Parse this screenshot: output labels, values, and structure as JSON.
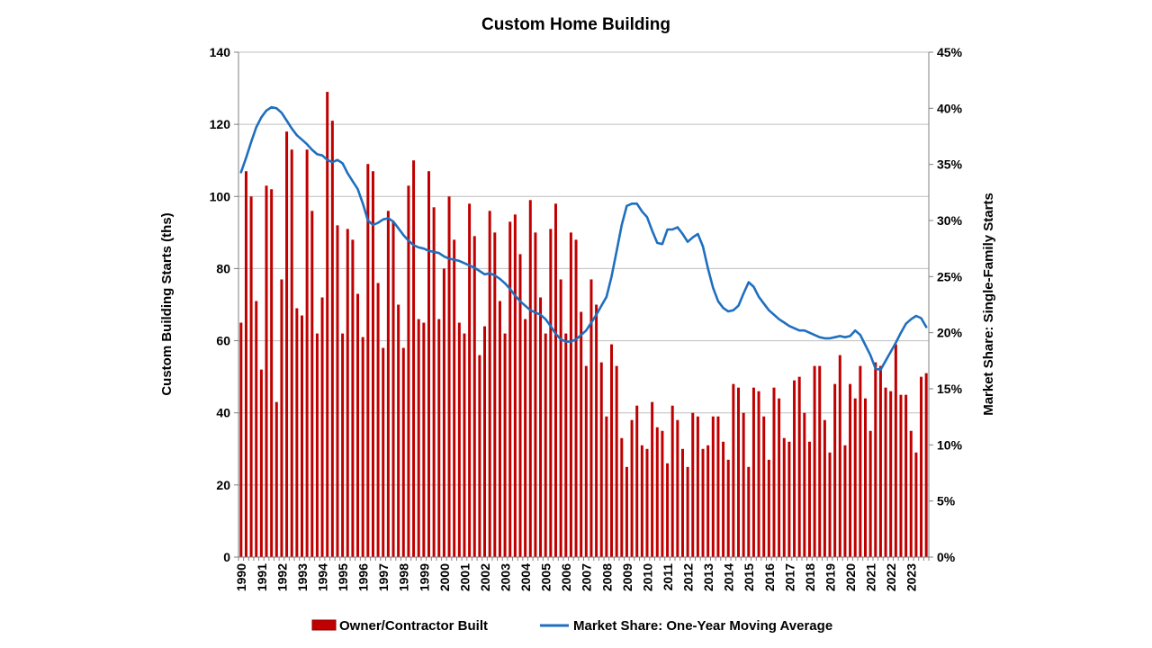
{
  "page": {
    "background": "#FFFFFF"
  },
  "chart_data": {
    "type": "combo-bar-line",
    "title": "Custom Home Building",
    "frequency": "quarterly",
    "years": [
      1990,
      1991,
      1992,
      1993,
      1994,
      1995,
      1996,
      1997,
      1998,
      1999,
      2000,
      2001,
      2002,
      2003,
      2004,
      2005,
      2006,
      2007,
      2008,
      2009,
      2010,
      2011,
      2012,
      2013,
      2014,
      2015,
      2016,
      2017,
      2018,
      2019,
      2020,
      2021,
      2022,
      2023
    ],
    "left_axis": {
      "title": "Custom Building Starts (ths)",
      "min": 0,
      "max": 140,
      "step": 20,
      "tick_labels": [
        "0",
        "20",
        "40",
        "60",
        "80",
        "100",
        "120",
        "140"
      ]
    },
    "right_axis": {
      "title": "Market Share: Single-Family Starts",
      "min": 0,
      "max": 45,
      "step": 5,
      "tick_labels": [
        "0%",
        "5%",
        "10%",
        "15%",
        "20%",
        "25%",
        "30%",
        "35%",
        "40%",
        "45%"
      ]
    },
    "series": [
      {
        "name": "Owner/Contractor Built",
        "type": "bar",
        "axis": "left",
        "color": "#C00000",
        "values": [
          65,
          107,
          100,
          71,
          52,
          103,
          102,
          43,
          77,
          118,
          113,
          69,
          67,
          113,
          96,
          62,
          72,
          129,
          121,
          92,
          62,
          91,
          88,
          73,
          61,
          109,
          107,
          76,
          58,
          96,
          93,
          70,
          58,
          103,
          110,
          66,
          65,
          107,
          97,
          66,
          80,
          100,
          88,
          65,
          62,
          98,
          89,
          56,
          64,
          96,
          90,
          71,
          62,
          93,
          95,
          84,
          66,
          99,
          90,
          72,
          62,
          91,
          98,
          77,
          62,
          90,
          88,
          68,
          53,
          77,
          70,
          54,
          39,
          59,
          53,
          33,
          25,
          38,
          42,
          31,
          30,
          43,
          36,
          35,
          26,
          42,
          38,
          30,
          25,
          40,
          39,
          30,
          31,
          39,
          39,
          32,
          27,
          48,
          47,
          40,
          25,
          47,
          46,
          39,
          27,
          47,
          44,
          33,
          32,
          49,
          50,
          40,
          32,
          53,
          53,
          38,
          29,
          48,
          56,
          31,
          48,
          44,
          53,
          44,
          35,
          54,
          53,
          47,
          46,
          59,
          45,
          45,
          35,
          29,
          50,
          51
        ]
      },
      {
        "name": "Market Share: One-Year Moving Average",
        "type": "line",
        "axis": "right",
        "color": "#1F6FBE",
        "values_percent": [
          34.3,
          35.6,
          37.0,
          38.3,
          39.2,
          39.8,
          40.1,
          40.0,
          39.6,
          38.9,
          38.2,
          37.6,
          37.2,
          36.8,
          36.3,
          35.9,
          35.8,
          35.4,
          35.2,
          35.4,
          35.1,
          34.2,
          33.5,
          32.8,
          31.5,
          30.0,
          29.6,
          29.8,
          30.1,
          30.2,
          29.9,
          29.3,
          28.7,
          28.2,
          27.8,
          27.6,
          27.5,
          27.3,
          27.2,
          27.1,
          26.8,
          26.6,
          26.5,
          26.4,
          26.2,
          26.0,
          25.8,
          25.5,
          25.2,
          25.3,
          25.1,
          24.8,
          24.4,
          23.9,
          23.3,
          22.8,
          22.4,
          22.0,
          21.8,
          21.6,
          21.2,
          20.6,
          19.9,
          19.4,
          19.2,
          19.2,
          19.4,
          19.8,
          20.2,
          20.9,
          21.6,
          22.4,
          23.2,
          25.0,
          27.3,
          29.6,
          31.3,
          31.5,
          31.5,
          30.8,
          30.3,
          29.1,
          28.0,
          27.9,
          29.2,
          29.2,
          29.4,
          28.8,
          28.1,
          28.5,
          28.8,
          27.7,
          25.7,
          24.0,
          22.8,
          22.2,
          21.9,
          22.0,
          22.4,
          23.5,
          24.5,
          24.1,
          23.2,
          22.6,
          22.0,
          21.6,
          21.2,
          20.9,
          20.6,
          20.4,
          20.2,
          20.2,
          20.0,
          19.8,
          19.6,
          19.5,
          19.5,
          19.6,
          19.7,
          19.6,
          19.7,
          20.2,
          19.8,
          18.9,
          18.0,
          16.8,
          16.7,
          17.5,
          18.3,
          19.1,
          20.0,
          20.8,
          21.2,
          21.5,
          21.3,
          20.5
        ]
      }
    ],
    "legend": {
      "position": "bottom",
      "items": [
        "Owner/Contractor Built",
        "Market Share: One-Year Moving Average"
      ]
    },
    "grid": {
      "color": "#BFBFBF",
      "horizontal": true,
      "vertical": false
    },
    "axis_line_color": "#808080",
    "text_color": "#000000"
  }
}
